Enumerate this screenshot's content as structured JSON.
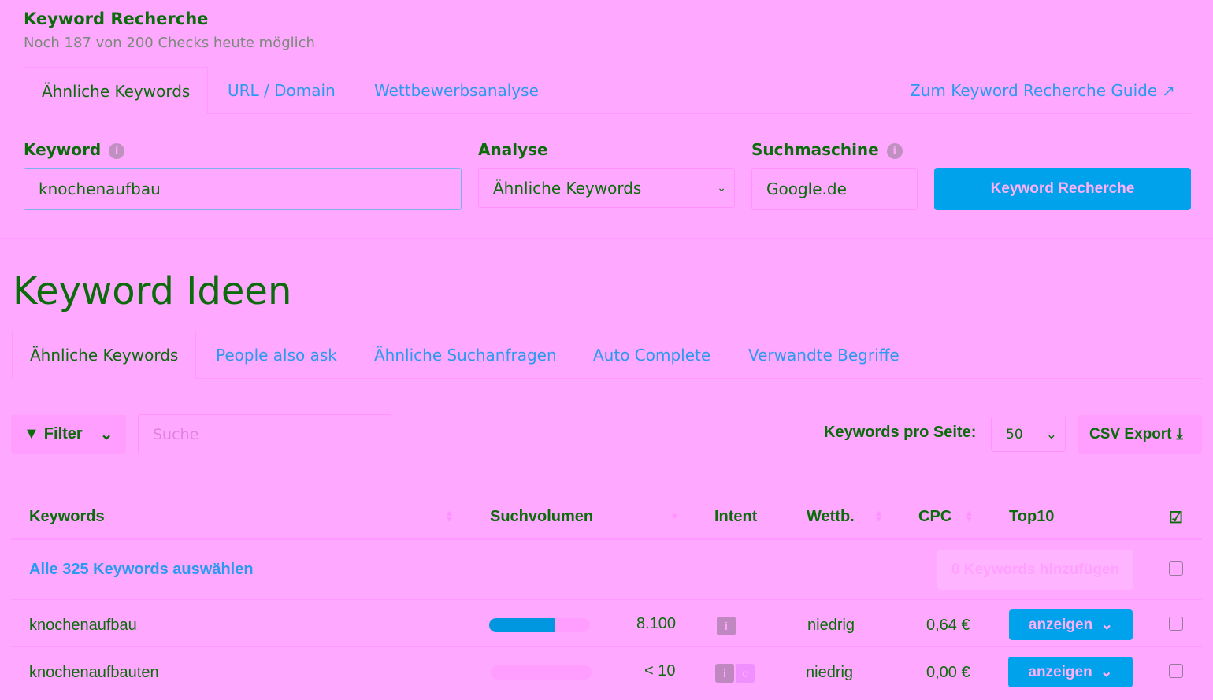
{
  "header": {
    "title": "Keyword Recherche",
    "subtitle": "Noch 187 von 200 Checks heute möglich"
  },
  "top_tabs": [
    {
      "label": "Ähnliche Keywords",
      "active": true
    },
    {
      "label": "URL / Domain"
    },
    {
      "label": "Wettbewerbsanalyse"
    }
  ],
  "guide_link": "Zum Keyword Recherche Guide",
  "form": {
    "keyword_label": "Keyword",
    "keyword_value": "knochenaufbau",
    "analyse_label": "Analyse",
    "analyse_value": "Ähnliche Keywords",
    "engine_label": "Suchmaschine",
    "engine_value": "Google.de",
    "submit": "Keyword Recherche"
  },
  "ideas": {
    "title": "Keyword Ideen",
    "tabs": [
      {
        "label": "Ähnliche Keywords",
        "active": true
      },
      {
        "label": "People also ask"
      },
      {
        "label": "Ähnliche Suchanfragen"
      },
      {
        "label": "Auto Complete"
      },
      {
        "label": "Verwandte Begriffe"
      }
    ]
  },
  "toolbar": {
    "filter": "Filter",
    "search_placeholder": "Suche",
    "per_page_label": "Keywords pro Seite:",
    "per_page_value": "50",
    "csv": "CSV Export"
  },
  "table": {
    "headers": [
      "Keywords",
      "Suchvolumen",
      "Intent",
      "Wettb.",
      "CPC",
      "Top10"
    ],
    "select_all": "Alle 325 Keywords auswählen",
    "add_button": "0 Keywords hinzufügen",
    "rows": [
      {
        "keyword": "knochenaufbau",
        "volume": "8.100",
        "volume_fill": 0.65,
        "intents": [
          "i"
        ],
        "competition": "niedrig",
        "cpc": "0,64 €",
        "top10": "anzeigen"
      },
      {
        "keyword": "knochenaufbauten",
        "volume": "< 10",
        "volume_fill": 0,
        "intents": [
          "i",
          "c"
        ],
        "competition": "niedrig",
        "cpc": "0,00 €",
        "top10": "anzeigen"
      }
    ]
  },
  "colors": {
    "background": "#ffa8ff",
    "text": "#0b6b0b",
    "link": "#2a9af0",
    "primary_button": "#00a2ec"
  }
}
